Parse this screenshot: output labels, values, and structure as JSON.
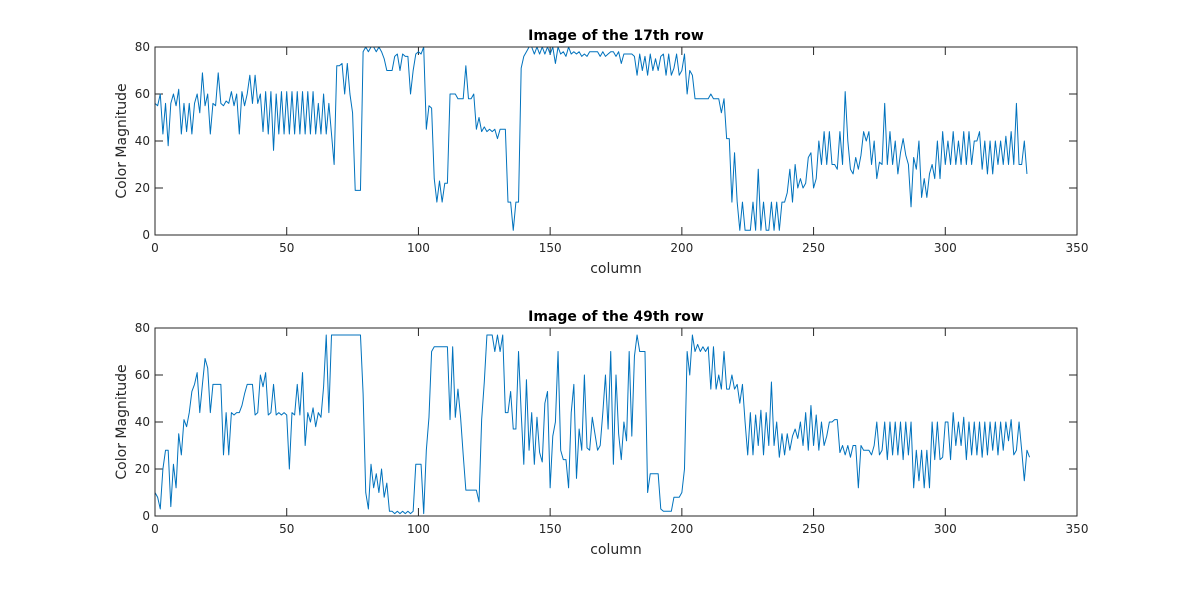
{
  "chart_data": [
    {
      "type": "line",
      "title": "Image of the 17th row",
      "xlabel": "column",
      "ylabel": "Color Magnitude",
      "xlim": [
        0,
        350
      ],
      "ylim": [
        0,
        80
      ],
      "xticks": [
        0,
        50,
        100,
        150,
        200,
        250,
        300,
        350
      ],
      "yticks": [
        0,
        20,
        40,
        60,
        80
      ],
      "color": "#0072BD",
      "grid": false,
      "series": [
        {
          "values": [
            56,
            55,
            60,
            43,
            56,
            38,
            56,
            60,
            55,
            62,
            43,
            56,
            44,
            56,
            43,
            56,
            60,
            52,
            69,
            55,
            60,
            43,
            56,
            55,
            69,
            56,
            55,
            57,
            56,
            61,
            55,
            60,
            43,
            61,
            55,
            60,
            68,
            56,
            68,
            56,
            60,
            44,
            61,
            43,
            61,
            36,
            60,
            43,
            61,
            43,
            61,
            43,
            61,
            43,
            61,
            43,
            61,
            43,
            61,
            43,
            61,
            43,
            56,
            43,
            60,
            43,
            56,
            43,
            30,
            72,
            72,
            73,
            60,
            73,
            60,
            52,
            19,
            19,
            19,
            78,
            80,
            78,
            80,
            80,
            78,
            80,
            78,
            75,
            70,
            70,
            70,
            76,
            77,
            70,
            77,
            76,
            76,
            60,
            70,
            77,
            78,
            77,
            80,
            45,
            55,
            54,
            24,
            14,
            23,
            14,
            22,
            22,
            60,
            60,
            60,
            58,
            58,
            58,
            72,
            58,
            58,
            60,
            45,
            50,
            44,
            46,
            44,
            45,
            44,
            45,
            41,
            45,
            45,
            45,
            14,
            14,
            2,
            14,
            14,
            71,
            76,
            78,
            80,
            80,
            77,
            80,
            77,
            80,
            77,
            80,
            77,
            80,
            73,
            80,
            77,
            78,
            76,
            80,
            77,
            78,
            77,
            78,
            76,
            77,
            76,
            78,
            78,
            78,
            78,
            76,
            78,
            76,
            77,
            78,
            78,
            76,
            78,
            73,
            77,
            77,
            77,
            77,
            76,
            68,
            77,
            70,
            76,
            68,
            77,
            70,
            75,
            70,
            76,
            77,
            68,
            77,
            68,
            71,
            77,
            68,
            70,
            77,
            60,
            70,
            68,
            58,
            58,
            58,
            58,
            58,
            58,
            60,
            58,
            58,
            58,
            52,
            58,
            41,
            41,
            14,
            35,
            14,
            2,
            14,
            2,
            2,
            2,
            14,
            2,
            28,
            2,
            14,
            2,
            2,
            14,
            2,
            14,
            2,
            14,
            14,
            18,
            28,
            14,
            30,
            20,
            24,
            20,
            22,
            33,
            35,
            20,
            24,
            40,
            30,
            44,
            30,
            44,
            30,
            30,
            28,
            44,
            30,
            61,
            40,
            28,
            26,
            33,
            28,
            34,
            44,
            40,
            44,
            30,
            40,
            24,
            31,
            30,
            56,
            30,
            44,
            30,
            40,
            26,
            35,
            41,
            34,
            30,
            12,
            33,
            28,
            40,
            16,
            24,
            16,
            26,
            30,
            24,
            40,
            24,
            44,
            30,
            40,
            30,
            44,
            30,
            40,
            30,
            44,
            30,
            44,
            30,
            40,
            40,
            44,
            28,
            40,
            26,
            40,
            26,
            40,
            30,
            40,
            30,
            42,
            30,
            44,
            30,
            56,
            30,
            30,
            40,
            26
          ]
        }
      ]
    },
    {
      "type": "line",
      "title": "Image of the 49th row",
      "xlabel": "column",
      "ylabel": "Color Magnitude",
      "xlim": [
        0,
        350
      ],
      "ylim": [
        0,
        80
      ],
      "xticks": [
        0,
        50,
        100,
        150,
        200,
        250,
        300,
        350
      ],
      "yticks": [
        0,
        20,
        40,
        60,
        80
      ],
      "color": "#0072BD",
      "grid": false,
      "series": [
        {
          "values": [
            10,
            8,
            3,
            20,
            28,
            28,
            4,
            22,
            12,
            35,
            26,
            41,
            38,
            44,
            53,
            56,
            61,
            44,
            56,
            67,
            63,
            44,
            56,
            56,
            56,
            56,
            26,
            44,
            26,
            44,
            43,
            44,
            44,
            47,
            52,
            56,
            56,
            56,
            43,
            44,
            60,
            55,
            61,
            43,
            44,
            56,
            43,
            44,
            43,
            44,
            43,
            20,
            44,
            43,
            56,
            43,
            61,
            30,
            44,
            40,
            46,
            38,
            44,
            42,
            55,
            77,
            44,
            77,
            77,
            77,
            77,
            77,
            77,
            77,
            77,
            77,
            77,
            77,
            77,
            52,
            10,
            3,
            22,
            12,
            18,
            10,
            20,
            8,
            14,
            2,
            2,
            1,
            2,
            1,
            2,
            1,
            2,
            1,
            2,
            22,
            22,
            22,
            1,
            28,
            42,
            70,
            72,
            72,
            72,
            72,
            72,
            72,
            41,
            72,
            42,
            54,
            42,
            26,
            11,
            11,
            11,
            11,
            11,
            6,
            41,
            57,
            77,
            77,
            77,
            70,
            77,
            70,
            77,
            44,
            44,
            53,
            37,
            37,
            70,
            44,
            22,
            58,
            28,
            44,
            22,
            42,
            27,
            23,
            48,
            53,
            12,
            34,
            40,
            70,
            28,
            24,
            24,
            12,
            44,
            56,
            16,
            37,
            28,
            60,
            29,
            28,
            42,
            35,
            28,
            30,
            44,
            60,
            37,
            70,
            22,
            60,
            35,
            24,
            40,
            32,
            70,
            34,
            68,
            77,
            70,
            70,
            70,
            10,
            18,
            18,
            18,
            18,
            3,
            2,
            2,
            2,
            2,
            8,
            8,
            8,
            10,
            20,
            70,
            60,
            77,
            70,
            73,
            70,
            72,
            70,
            72,
            54,
            72,
            54,
            60,
            54,
            70,
            54,
            54,
            60,
            54,
            56,
            48,
            56,
            40,
            26,
            44,
            26,
            43,
            30,
            45,
            26,
            44,
            30,
            57,
            30,
            40,
            25,
            35,
            26,
            35,
            28,
            34,
            37,
            33,
            40,
            30,
            44,
            28,
            47,
            30,
            43,
            28,
            40,
            30,
            34,
            40,
            40,
            41,
            41,
            27,
            30,
            26,
            30,
            25,
            30,
            30,
            12,
            30,
            28,
            28,
            28,
            26,
            30,
            40,
            26,
            28,
            40,
            24,
            40,
            26,
            40,
            26,
            40,
            24,
            40,
            26,
            40,
            12,
            28,
            15,
            28,
            12,
            28,
            12,
            40,
            24,
            40,
            24,
            25,
            40,
            40,
            24,
            44,
            30,
            40,
            30,
            42,
            24,
            40,
            26,
            40,
            26,
            40,
            25,
            40,
            26,
            40,
            28,
            40,
            26,
            40,
            28,
            40,
            32,
            41,
            26,
            28,
            40,
            28,
            15,
            28,
            25
          ]
        }
      ]
    }
  ]
}
